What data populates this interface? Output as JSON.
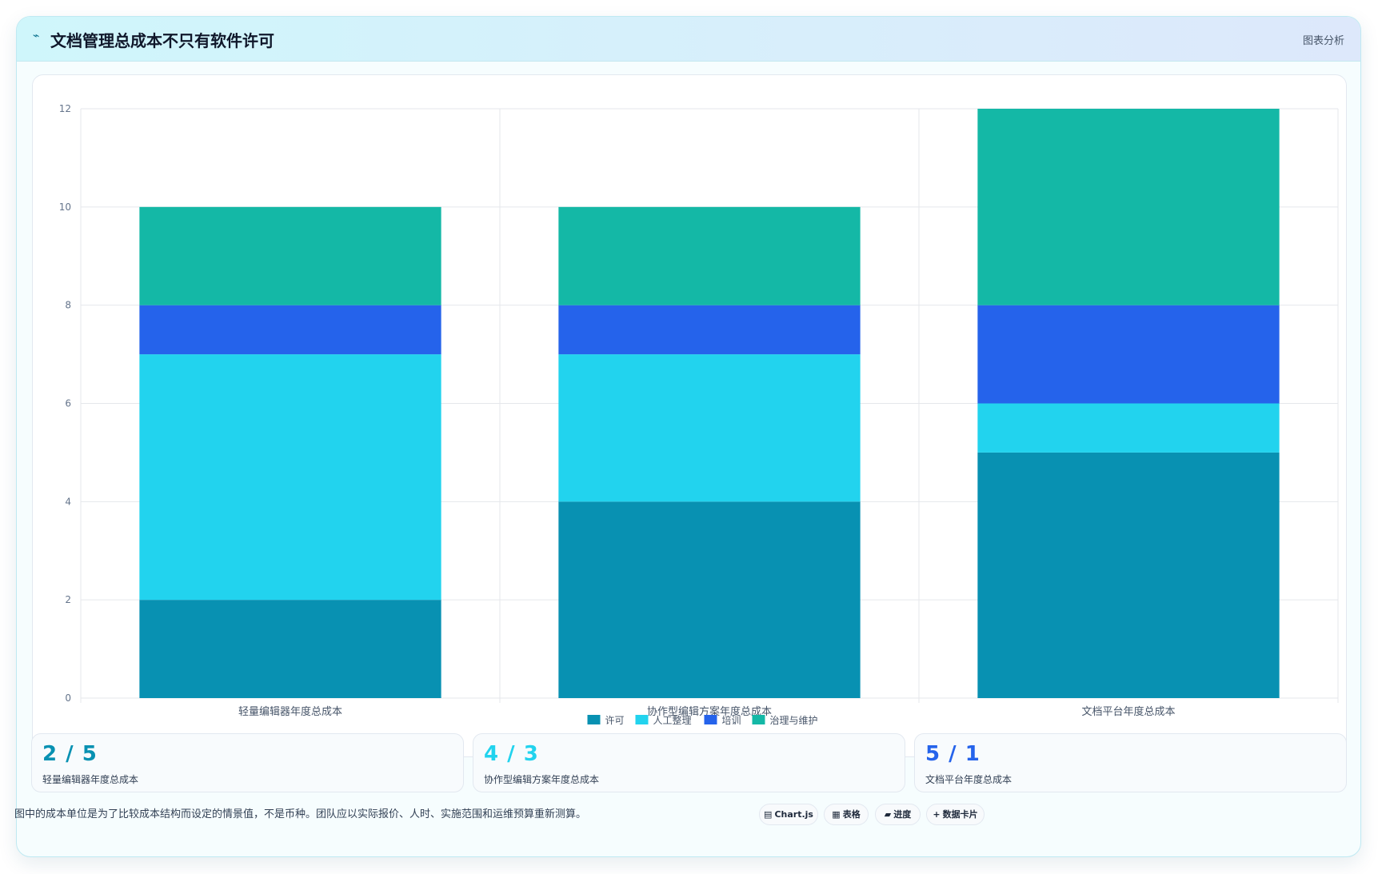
{
  "header": {
    "title": "文档管理总成本不只有软件许可",
    "tag": "图表分析"
  },
  "chart_data": {
    "type": "bar",
    "stacked": true,
    "categories": [
      "轻量编辑器年度总成本",
      "协作型编辑方案年度总成本",
      "文档平台年度总成本"
    ],
    "series": [
      {
        "name": "许可",
        "color": "#0891b2",
        "values": [
          2,
          4,
          5
        ]
      },
      {
        "name": "人工整理",
        "color": "#22d3ee",
        "values": [
          5,
          3,
          1
        ]
      },
      {
        "name": "培训",
        "color": "#2563eb",
        "values": [
          1,
          1,
          2
        ]
      },
      {
        "name": "治理与维护",
        "color": "#14b8a6",
        "values": [
          2,
          2,
          4
        ]
      }
    ],
    "yticks": [
      0,
      2,
      4,
      6,
      8,
      10,
      12
    ],
    "ylim": [
      0,
      12
    ],
    "grid": true,
    "legend": "bottom"
  },
  "stats": [
    {
      "value": "2 / 5",
      "label": "轻量编辑器年度总成本",
      "color": "#0891b2"
    },
    {
      "value": "4 / 3",
      "label": "协作型编辑方案年度总成本",
      "color": "#22d3ee"
    },
    {
      "value": "5 / 1",
      "label": "文档平台年度总成本",
      "color": "#2563eb"
    }
  ],
  "footnote": "图中的成本单位是为了比较成本结构而设定的情景值，不是币种。团队应以实际报价、人时、实施范围和运维预算重新测算。",
  "actions": [
    {
      "icon": "▤",
      "label": "Chart.js"
    },
    {
      "icon": "▦",
      "label": "表格"
    },
    {
      "icon": "▰",
      "label": "进度"
    },
    {
      "icon": "+",
      "label": "数据卡片"
    }
  ]
}
